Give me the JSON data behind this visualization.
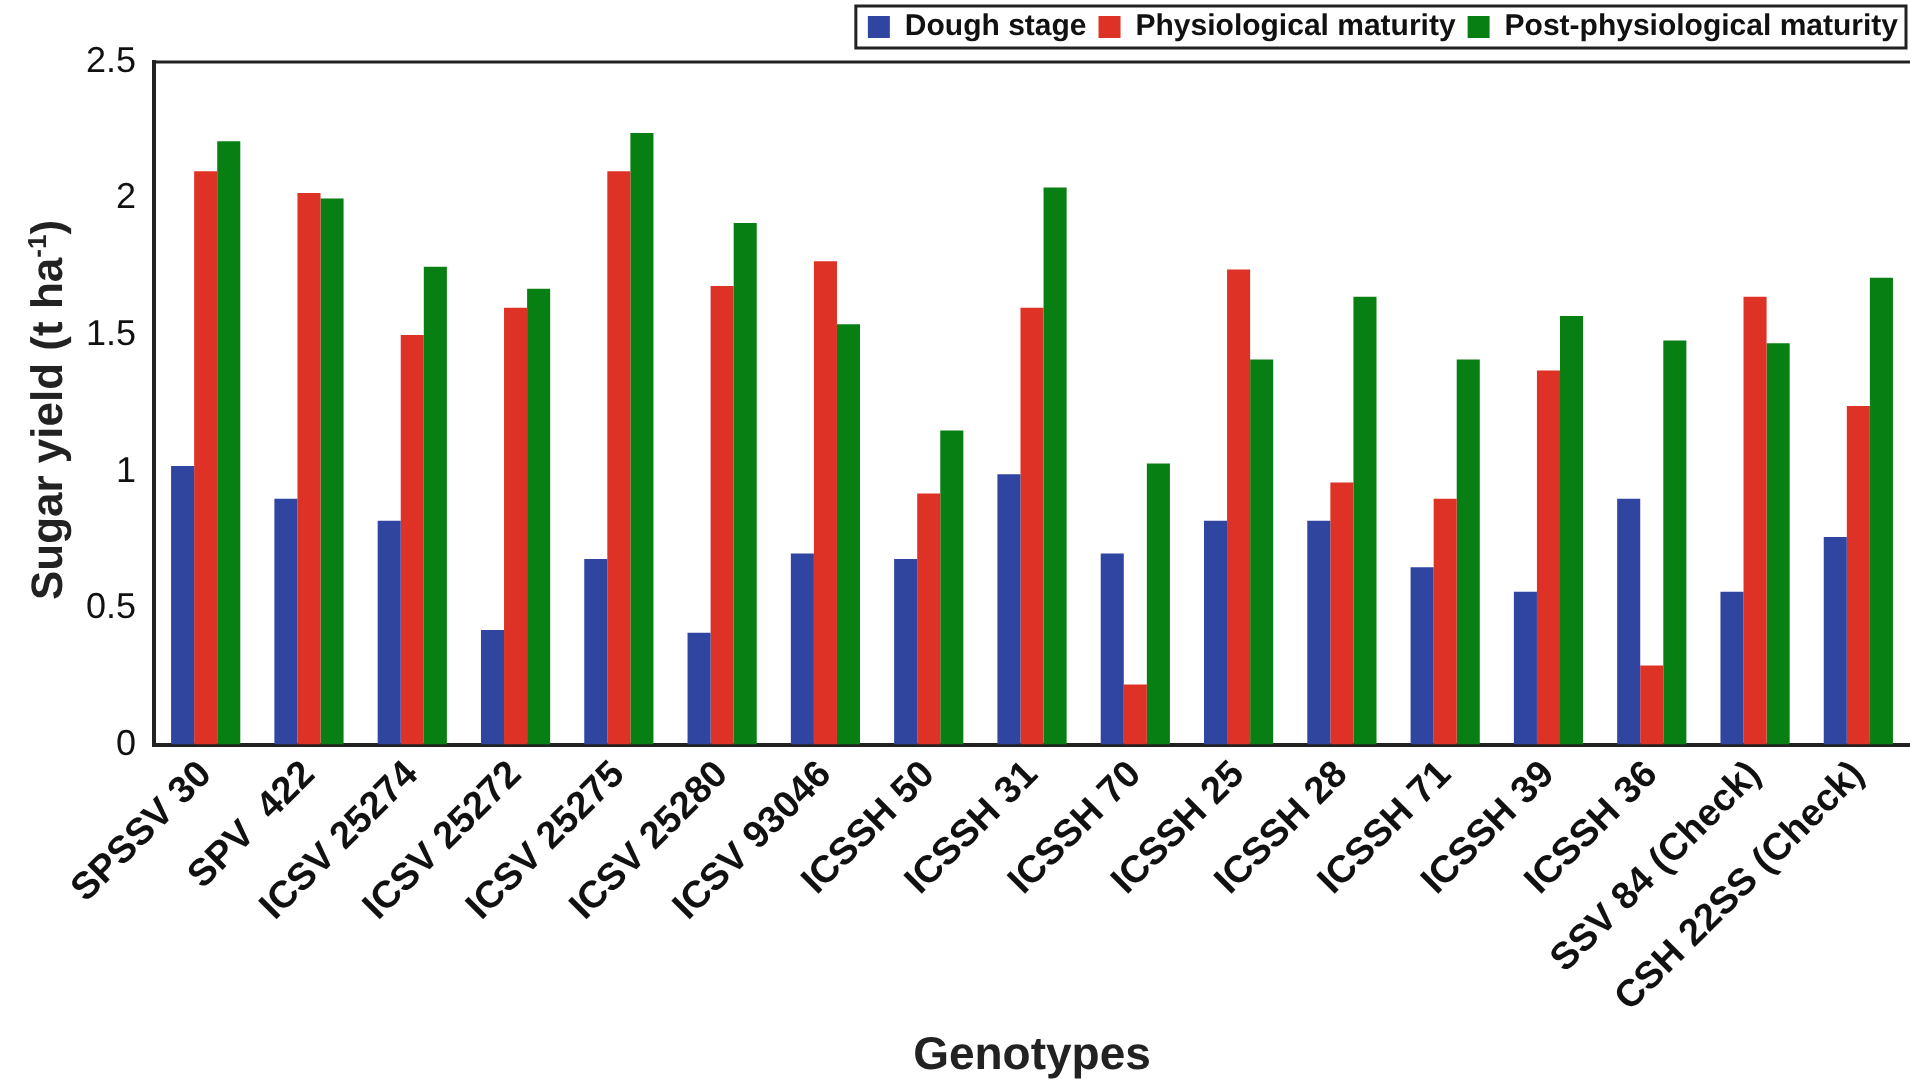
{
  "chart_data": {
    "type": "bar",
    "xlabel": "Genotypes",
    "ylabel": "Sugar yield (t ha$^{-1}$)",
    "categories": [
      "SPSSV 30",
      "SPV  422",
      "ICSV 25274",
      "ICSV 25272",
      "ICSV 25275",
      "ICSV 25280",
      "ICSV 93046",
      "ICSSH 50",
      "ICSSH 31",
      "ICSSH 70",
      "ICSSH 25",
      "ICSSH 28",
      "ICSSH 71",
      "ICSSH 39",
      "ICSSH 36",
      "SSV 84 (Check)",
      "CSH 22SS (Check)"
    ],
    "series": [
      {
        "name": "Dough stage",
        "color": "#2f45a0",
        "values": [
          1.02,
          0.9,
          0.82,
          0.42,
          0.68,
          0.41,
          0.7,
          0.68,
          0.99,
          0.7,
          0.82,
          0.82,
          0.65,
          0.56,
          0.9,
          0.56,
          0.76
        ]
      },
      {
        "name": "Physiological maturity",
        "color": "#de3226",
        "values": [
          2.1,
          2.02,
          1.5,
          1.6,
          2.1,
          1.68,
          1.77,
          0.92,
          1.6,
          0.22,
          1.74,
          0.96,
          0.9,
          1.37,
          0.29,
          1.64,
          1.24
        ]
      },
      {
        "name": "Post-physiological maturity",
        "color": "#087f12",
        "values": [
          2.21,
          2.0,
          1.75,
          1.67,
          2.24,
          1.91,
          1.54,
          1.15,
          2.04,
          1.03,
          1.41,
          1.64,
          1.41,
          1.57,
          1.48,
          1.47,
          1.71
        ]
      }
    ],
    "ylim": [
      0,
      2.5
    ],
    "yticks": [
      0,
      0.5,
      1,
      1.5,
      2,
      2.5
    ],
    "grid": false,
    "legend": "top right"
  }
}
